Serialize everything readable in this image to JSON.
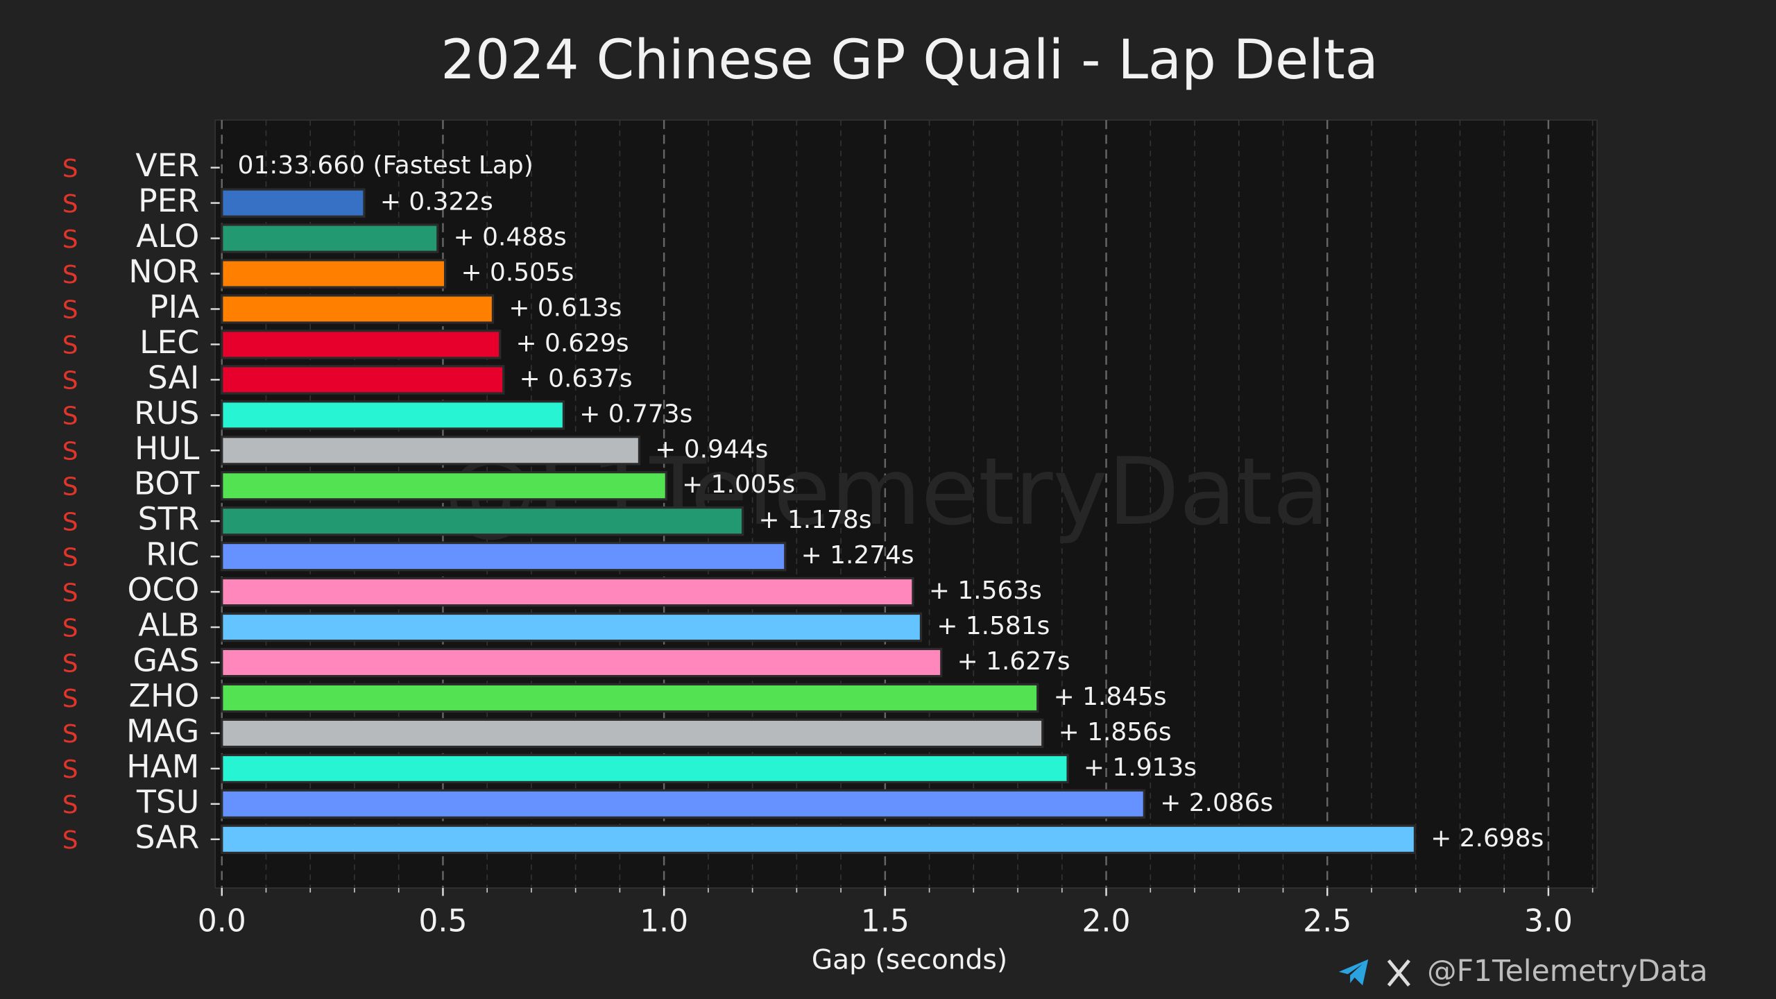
{
  "chart_data": {
    "type": "bar",
    "orientation": "horizontal",
    "title": "2024 Chinese GP Quali - Lap Delta",
    "x_label": "Gap (seconds)",
    "categories": [
      "VER",
      "PER",
      "ALO",
      "NOR",
      "PIA",
      "LEC",
      "SAI",
      "RUS",
      "HUL",
      "BOT",
      "STR",
      "RIC",
      "OCO",
      "ALB",
      "GAS",
      "ZHO",
      "MAG",
      "HAM",
      "TSU",
      "SAR"
    ],
    "tyres": [
      "S",
      "S",
      "S",
      "S",
      "S",
      "S",
      "S",
      "S",
      "S",
      "S",
      "S",
      "S",
      "S",
      "S",
      "S",
      "S",
      "S",
      "S",
      "S",
      "S"
    ],
    "tyre_color": "#e0352b",
    "values": [
      0,
      0.322,
      0.488,
      0.505,
      0.613,
      0.629,
      0.637,
      0.773,
      0.944,
      1.005,
      1.178,
      1.274,
      1.563,
      1.581,
      1.627,
      1.845,
      1.856,
      1.913,
      2.086,
      2.698
    ],
    "value_labels": [
      null,
      "+ 0.322s",
      "+ 0.488s",
      "+ 0.505s",
      "+ 0.613s",
      "+ 0.629s",
      "+ 0.637s",
      "+ 0.773s",
      "+ 0.944s",
      "+ 1.005s",
      "+ 1.178s",
      "+ 1.274s",
      "+ 1.563s",
      "+ 1.581s",
      "+ 1.627s",
      "+ 1.845s",
      "+ 1.856s",
      "+ 1.913s",
      "+ 2.086s",
      "+ 2.698s"
    ],
    "fastest_lap_label": "01:33.660 (Fastest Lap)",
    "colors": [
      "#3671c6",
      "#3671c6",
      "#229971",
      "#ff8000",
      "#ff8000",
      "#e8002d",
      "#e8002d",
      "#27f4d2",
      "#b6babd",
      "#52e252",
      "#229971",
      "#6692ff",
      "#ff87bc",
      "#64c4ff",
      "#ff87bc",
      "#52e252",
      "#b6babd",
      "#27f4d2",
      "#6692ff",
      "#64c4ff"
    ],
    "xlim": [
      -0.015,
      3.11
    ],
    "xticks": [
      {
        "value": 0,
        "label": "0.0"
      },
      {
        "value": 0.5,
        "label": "0.5"
      },
      {
        "value": 1,
        "label": "1.0"
      },
      {
        "value": 1.5,
        "label": "1.5"
      },
      {
        "value": 2,
        "label": "2.0"
      },
      {
        "value": 2.5,
        "label": "2.5"
      },
      {
        "value": 3,
        "label": "3.0"
      }
    ],
    "minor_xticks": [
      0.1,
      0.2,
      0.3,
      0.4,
      0.6,
      0.7,
      0.8,
      0.9,
      1.1,
      1.2,
      1.3,
      1.4,
      1.6,
      1.7,
      1.8,
      1.9,
      2.1,
      2.2,
      2.3,
      2.4,
      2.6,
      2.7,
      2.8,
      2.9,
      3.1
    ],
    "grid": true,
    "watermark": "@F1TelemetryData",
    "footer": "@F1TelemetryData"
  }
}
